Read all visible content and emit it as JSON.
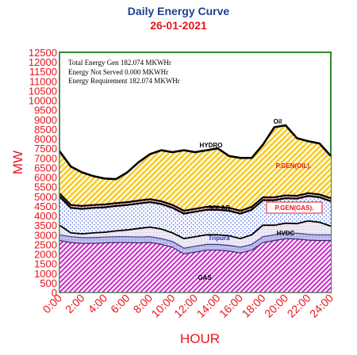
{
  "title": "Daily Energy Curve",
  "subtitle": "26-01-2021",
  "colors": {
    "accent_red": "#e8141c",
    "title_blue": "#1f3f8f",
    "frame_green": "#2e8b2e",
    "gas": "#cc33cc",
    "tripura": "#b7b4ea",
    "hvdc": "#e6e2f0",
    "solar_dots": "#7a8ee0",
    "pgen_gas": "#e8141c",
    "pgen_oil": "#f7d23a",
    "hydro": "#f5d0de",
    "oil_cross": "#8a2a4a"
  },
  "summary": {
    "line1": "Total Energy Gen 182.074 MKWHr",
    "line2": "Energy Not Served   0.000 MKWHr",
    "line3": "Energy Requirement      182.074 MKWHr"
  },
  "area_labels": {
    "gas": "GAS",
    "tripura": "Tripura",
    "hvdc": "HVDC",
    "solar": "SOLAR",
    "pgen_gas": "P.GEN(GAS).",
    "pgen_oil": "P.GEN(OIL).",
    "hydro": "HYDRO",
    "oil": "Oil"
  },
  "chart_data": {
    "type": "area",
    "stacked": true,
    "title": "Daily Energy Curve",
    "subtitle": "26-01-2021",
    "xlabel": "HOUR",
    "ylabel": "MW",
    "ylim": [
      0,
      12500
    ],
    "xlim": [
      0,
      24
    ],
    "grid": false,
    "x_ticks": [
      "0:00",
      "2:00",
      "4:00",
      "6:00",
      "8:00",
      "10:00",
      "12:00",
      "14:00",
      "16:00",
      "18:00",
      "20:00",
      "22:00",
      "24:00"
    ],
    "y_ticks": [
      0,
      500,
      1000,
      1500,
      2000,
      2500,
      3000,
      3500,
      4000,
      4500,
      5000,
      5500,
      6000,
      6500,
      7000,
      7500,
      8000,
      8500,
      9000,
      9500,
      10000,
      10500,
      11000,
      11500,
      12000,
      12500
    ],
    "x": [
      0,
      1,
      2,
      3,
      4,
      5,
      6,
      7,
      8,
      9,
      10,
      11,
      12,
      13,
      14,
      15,
      16,
      17,
      18,
      19,
      20,
      21,
      22,
      23,
      24
    ],
    "series": [
      {
        "name": "GAS",
        "values": [
          2700,
          2600,
          2550,
          2550,
          2580,
          2600,
          2600,
          2580,
          2600,
          2500,
          2350,
          2000,
          2100,
          2200,
          2200,
          2150,
          2050,
          2200,
          2600,
          2700,
          2800,
          2780,
          2720,
          2700,
          2700
        ]
      },
      {
        "name": "Tripura",
        "values": [
          300,
          300,
          300,
          300,
          300,
          300,
          300,
          300,
          300,
          300,
          300,
          300,
          300,
          300,
          300,
          300,
          300,
          300,
          300,
          300,
          300,
          300,
          300,
          300,
          300
        ]
      },
      {
        "name": "HVDC",
        "values": [
          500,
          200,
          200,
          250,
          250,
          300,
          350,
          450,
          500,
          500,
          450,
          500,
          500,
          500,
          500,
          500,
          450,
          500,
          600,
          500,
          500,
          500,
          700,
          650,
          450
        ]
      },
      {
        "name": "SOLAR",
        "values": [
          1500,
          1300,
          1300,
          1300,
          1300,
          1300,
          1300,
          1300,
          1300,
          1300,
          1300,
          1300,
          1300,
          1300,
          1300,
          1300,
          1300,
          1300,
          1300,
          1300,
          1300,
          1300,
          1300,
          1300,
          1300
        ]
      },
      {
        "name": "P.GEN(GAS).",
        "values": [
          150,
          150,
          150,
          150,
          150,
          150,
          150,
          150,
          150,
          150,
          150,
          150,
          150,
          150,
          150,
          150,
          150,
          150,
          150,
          150,
          150,
          150,
          150,
          150,
          150
        ]
      },
      {
        "name": "P.GEN(OIL).",
        "values": [
          2200,
          2000,
          1750,
          1500,
          1350,
          1250,
          1550,
          2000,
          2350,
          2650,
          2750,
          3150,
          2950,
          2950,
          3050,
          2700,
          2750,
          2550,
          2750,
          3650,
          3650,
          3000,
          2700,
          2650,
          2200
        ]
      },
      {
        "name": "HYDRO",
        "values": [
          0,
          0,
          0,
          0,
          0,
          0,
          0,
          0,
          0,
          0,
          0,
          0,
          0,
          0,
          0,
          0,
          0,
          0,
          0,
          0,
          0,
          0,
          0,
          0,
          0
        ]
      },
      {
        "name": "Oil",
        "values": [
          0,
          0,
          0,
          0,
          0,
          0,
          0,
          0,
          0,
          0,
          0,
          0,
          0,
          0,
          0,
          0,
          0,
          0,
          0,
          0,
          0,
          0,
          0,
          0,
          0
        ]
      }
    ],
    "annotations": [
      "Total Energy Gen 182.074 MKWHr",
      "Energy Not Served   0.000 MKWHr",
      "Energy Requirement      182.074 MKWHr"
    ]
  }
}
